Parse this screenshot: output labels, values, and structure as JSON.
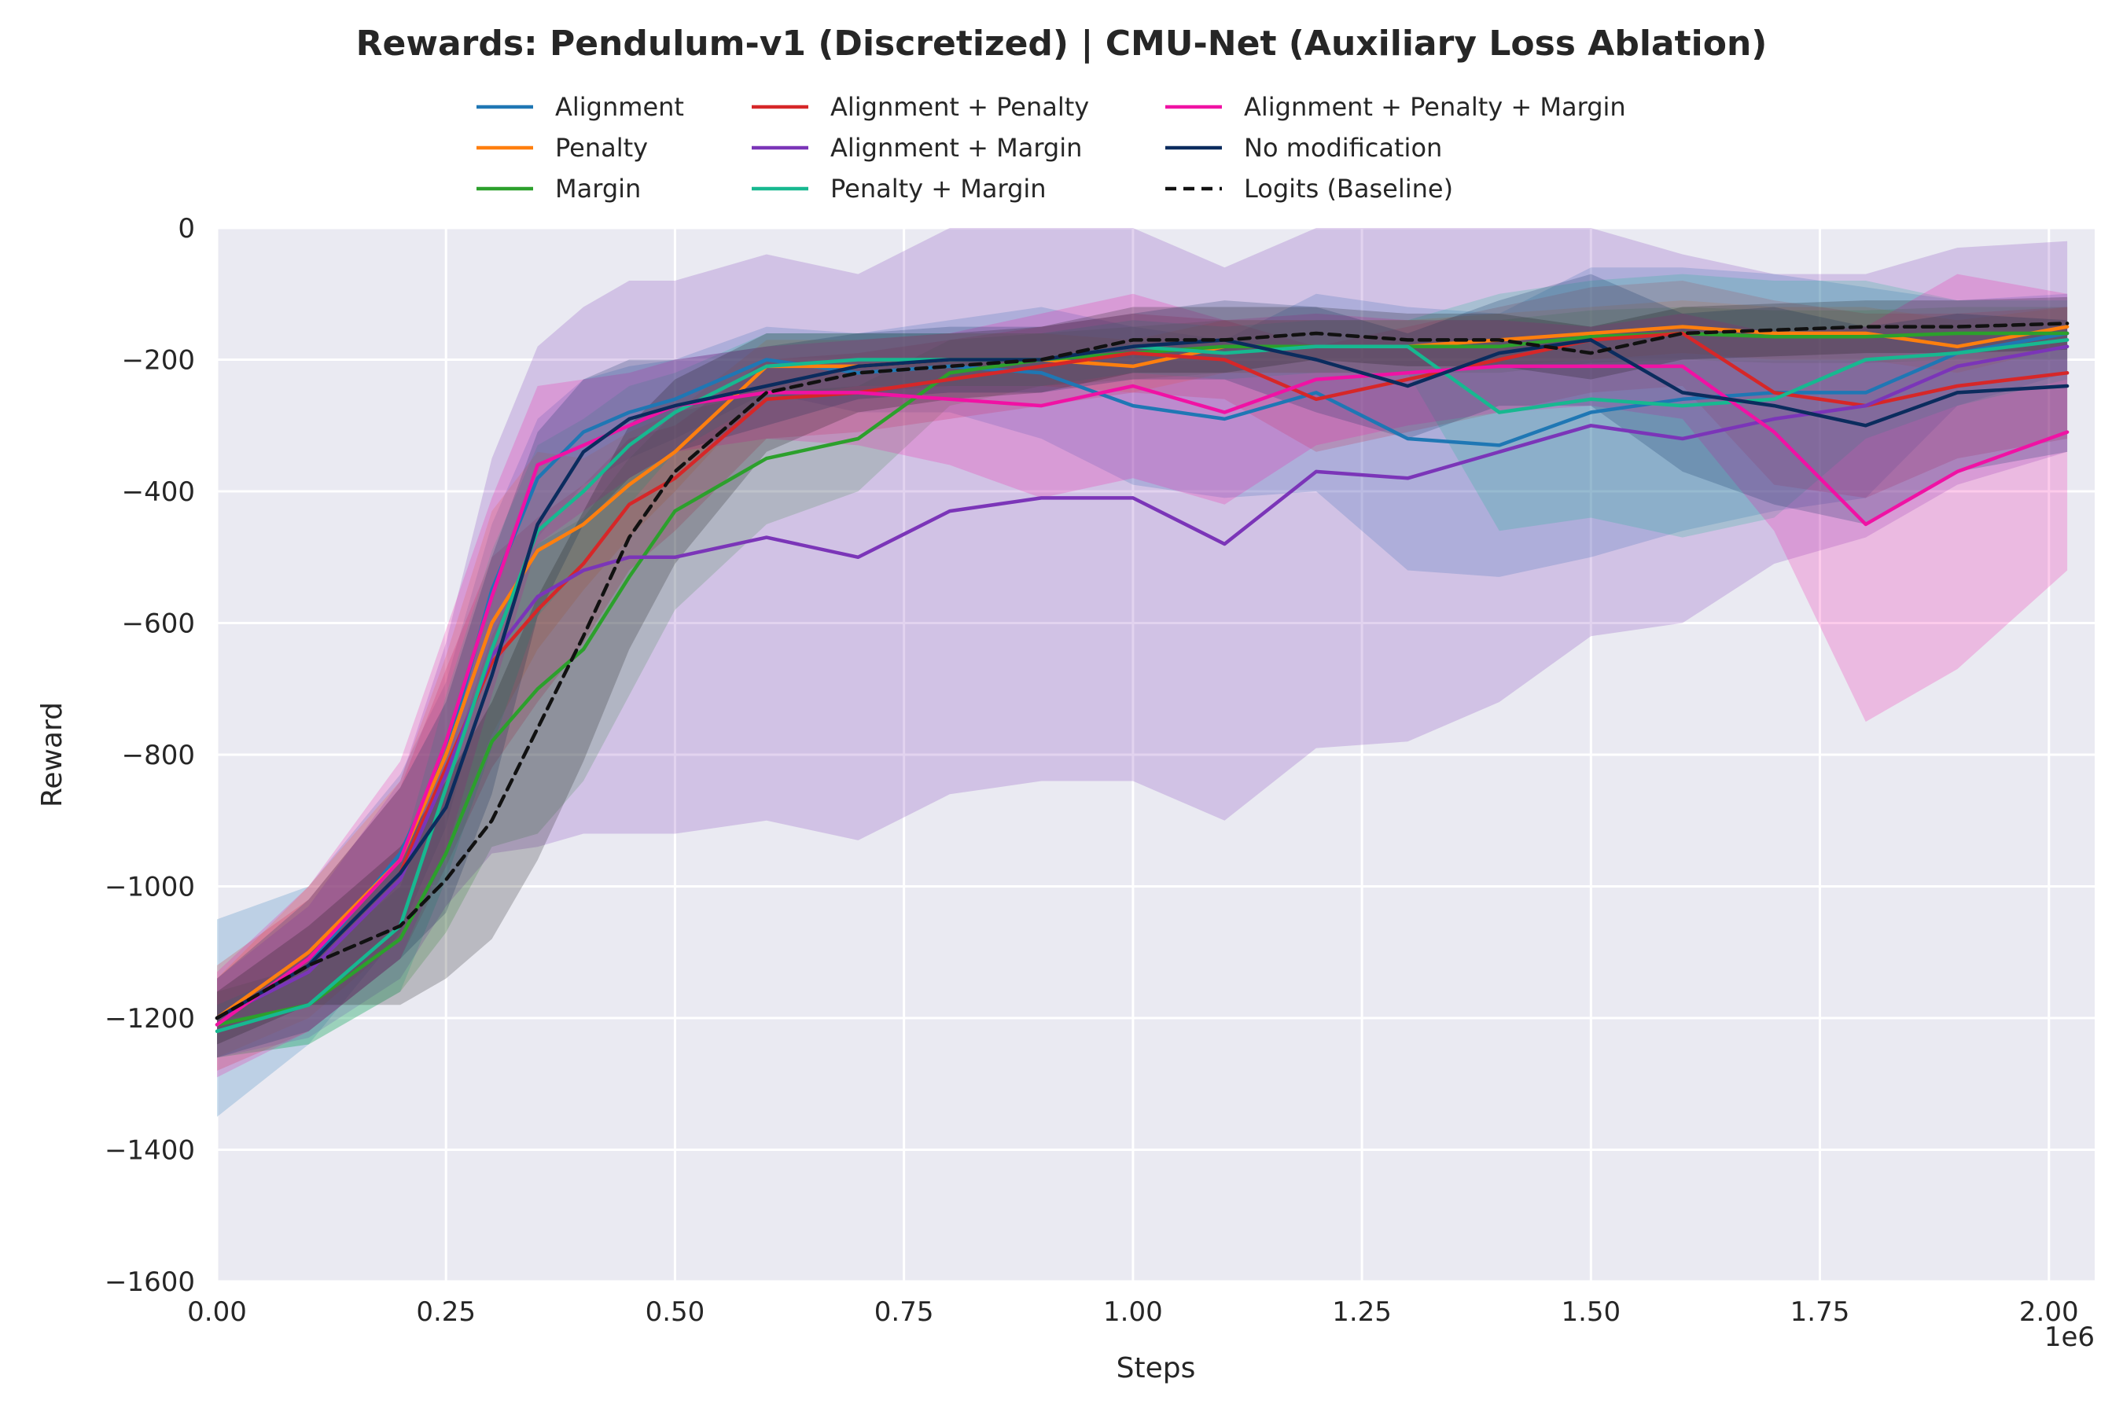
{
  "chart_data": {
    "type": "line",
    "title": "Rewards: Pendulum-v1 (Discretized) | CMU-Net (Auxiliary Loss Ablation)",
    "xlabel": "Steps",
    "ylabel": "Reward",
    "x_scale_label": "1e6",
    "xlim": [
      0,
      2.05
    ],
    "ylim": [
      -1600,
      0
    ],
    "x_ticks": [
      0,
      0.25,
      0.5,
      0.75,
      1.0,
      1.25,
      1.5,
      1.75,
      2.0
    ],
    "x_tick_labels": [
      "0.00",
      "0.25",
      "0.50",
      "0.75",
      "1.00",
      "1.25",
      "1.50",
      "1.75",
      "2.00"
    ],
    "y_ticks": [
      0,
      -200,
      -400,
      -600,
      -800,
      -1000,
      -1200,
      -1400,
      -1600
    ],
    "y_tick_labels": [
      "0",
      "−200",
      "−400",
      "−600",
      "−800",
      "−1000",
      "−1200",
      "−1400",
      "−1600"
    ],
    "grid": true,
    "legend_position": "top-center",
    "legend_columns": 3,
    "x": [
      0,
      0.1,
      0.2,
      0.25,
      0.3,
      0.35,
      0.4,
      0.45,
      0.5,
      0.6,
      0.7,
      0.8,
      0.9,
      1.0,
      1.1,
      1.2,
      1.3,
      1.4,
      1.5,
      1.6,
      1.7,
      1.8,
      1.9,
      2.02
    ],
    "series": [
      {
        "name": "Alignment",
        "color": "#1f77b4",
        "dash": false,
        "values": [
          -1200,
          -1120,
          -950,
          -800,
          -550,
          -380,
          -310,
          -280,
          -260,
          -200,
          -220,
          -210,
          -220,
          -270,
          -290,
          -250,
          -320,
          -330,
          -280,
          -260,
          -250,
          -250,
          -190,
          -160
        ],
        "band": [
          150,
          120,
          120,
          110,
          100,
          90,
          80,
          70,
          60,
          50,
          60,
          70,
          100,
          120,
          120,
          150,
          200,
          200,
          220,
          200,
          180,
          160,
          80,
          60
        ]
      },
      {
        "name": "Penalty",
        "color": "#ff7f0e",
        "dash": false,
        "values": [
          -1200,
          -1100,
          -960,
          -800,
          -600,
          -490,
          -450,
          -390,
          -340,
          -210,
          -210,
          -200,
          -200,
          -210,
          -180,
          -180,
          -180,
          -170,
          -160,
          -150,
          -160,
          -160,
          -180,
          -150
        ],
        "band": [
          60,
          100,
          120,
          150,
          170,
          150,
          100,
          80,
          60,
          40,
          40,
          40,
          40,
          40,
          40,
          40,
          40,
          40,
          40,
          40,
          40,
          40,
          40,
          30
        ]
      },
      {
        "name": "Margin",
        "color": "#2ca02c",
        "dash": false,
        "values": [
          -1210,
          -1180,
          -1080,
          -950,
          -780,
          -700,
          -640,
          -530,
          -430,
          -350,
          -320,
          -220,
          -200,
          -190,
          -180,
          -180,
          -180,
          -180,
          -165,
          -160,
          -165,
          -165,
          -160,
          -160
        ],
        "band": [
          50,
          60,
          80,
          120,
          160,
          220,
          200,
          180,
          150,
          100,
          80,
          50,
          40,
          40,
          40,
          40,
          40,
          40,
          40,
          40,
          40,
          40,
          40,
          40
        ]
      },
      {
        "name": "Alignment + Penalty",
        "color": "#d62728",
        "dash": false,
        "values": [
          -1200,
          -1120,
          -980,
          -820,
          -660,
          -580,
          -510,
          -420,
          -380,
          -260,
          -250,
          -230,
          -210,
          -190,
          -200,
          -260,
          -230,
          -200,
          -170,
          -160,
          -250,
          -270,
          -240,
          -220
        ],
        "band": [
          80,
          100,
          130,
          150,
          160,
          140,
          120,
          100,
          80,
          60,
          60,
          60,
          60,
          60,
          60,
          80,
          80,
          80,
          80,
          80,
          140,
          140,
          110,
          100
        ]
      },
      {
        "name": "Alignment + Margin",
        "color": "#7b35b8",
        "dash": false,
        "values": [
          -1200,
          -1130,
          -990,
          -830,
          -650,
          -560,
          -520,
          -500,
          -500,
          -470,
          -500,
          -430,
          -410,
          -410,
          -480,
          -370,
          -380,
          -340,
          -300,
          -320,
          -290,
          -270,
          -210,
          -180
        ],
        "band": [
          60,
          100,
          150,
          200,
          300,
          380,
          400,
          420,
          420,
          430,
          430,
          430,
          430,
          430,
          420,
          420,
          400,
          380,
          320,
          280,
          220,
          200,
          180,
          160
        ]
      },
      {
        "name": "Penalty + Margin",
        "color": "#17b890",
        "dash": false,
        "values": [
          -1220,
          -1180,
          -1060,
          -850,
          -640,
          -460,
          -400,
          -330,
          -280,
          -210,
          -200,
          -200,
          -200,
          -180,
          -190,
          -180,
          -180,
          -280,
          -260,
          -270,
          -260,
          -200,
          -190,
          -170
        ],
        "band": [
          40,
          60,
          100,
          140,
          150,
          130,
          110,
          90,
          60,
          50,
          40,
          40,
          40,
          40,
          40,
          40,
          40,
          180,
          180,
          200,
          180,
          120,
          80,
          60
        ]
      },
      {
        "name": "Alignment + Penalty + Margin",
        "color": "#f012a4",
        "dash": false,
        "values": [
          -1210,
          -1110,
          -960,
          -780,
          -560,
          -360,
          -330,
          -300,
          -270,
          -250,
          -250,
          -260,
          -270,
          -240,
          -280,
          -230,
          -220,
          -210,
          -210,
          -210,
          -310,
          -450,
          -370,
          -310
        ],
        "band": [
          80,
          110,
          150,
          170,
          150,
          120,
          100,
          80,
          70,
          70,
          80,
          100,
          140,
          140,
          140,
          100,
          80,
          70,
          60,
          80,
          150,
          300,
          300,
          210
        ]
      },
      {
        "name": "No modification",
        "color": "#0b2c5e",
        "dash": false,
        "values": [
          -1200,
          -1120,
          -980,
          -880,
          -680,
          -450,
          -340,
          -290,
          -270,
          -240,
          -210,
          -200,
          -200,
          -180,
          -170,
          -200,
          -240,
          -190,
          -170,
          -250,
          -270,
          -300,
          -250,
          -240
        ],
        "band": [
          60,
          100,
          130,
          160,
          180,
          140,
          110,
          90,
          70,
          60,
          50,
          50,
          50,
          50,
          60,
          80,
          80,
          80,
          100,
          120,
          150,
          150,
          120,
          100
        ]
      },
      {
        "name": "Logits (Baseline)",
        "color": "#111111",
        "dash": true,
        "values": [
          -1200,
          -1120,
          -1060,
          -990,
          -900,
          -760,
          -620,
          -470,
          -370,
          -250,
          -220,
          -210,
          -200,
          -170,
          -170,
          -160,
          -170,
          -170,
          -190,
          -160,
          -155,
          -150,
          -150,
          -145
        ],
        "band": [
          40,
          60,
          120,
          150,
          180,
          200,
          190,
          170,
          140,
          90,
          60,
          50,
          50,
          50,
          50,
          40,
          40,
          40,
          40,
          40,
          40,
          40,
          40,
          40
        ]
      }
    ]
  }
}
